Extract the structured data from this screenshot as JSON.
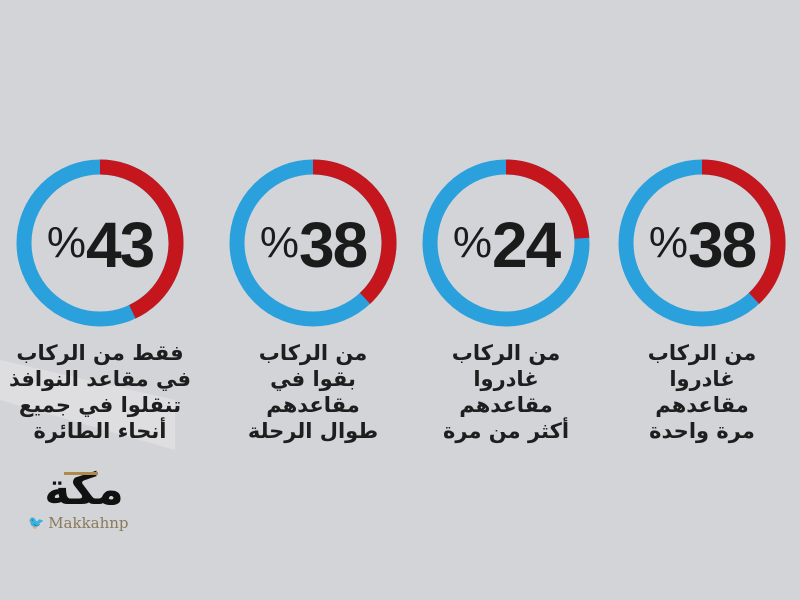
{
  "chart_data": {
    "type": "pie",
    "variant": "donut",
    "colors": {
      "highlight": "#c4161c",
      "remainder": "#2aa0dc"
    },
    "charts": [
      {
        "value": 43,
        "label": "%43",
        "caption": [
          "فقط من الركاب",
          "في مقاعد النوافذ",
          "تنقلوا في  جميع",
          "أنحاء الطائرة"
        ]
      },
      {
        "value": 38,
        "label": "%38",
        "caption": [
          "من الركاب",
          "بقوا في",
          "مقاعدهم",
          "طوال الرحلة"
        ]
      },
      {
        "value": 24,
        "label": "%24",
        "caption": [
          "من الركاب",
          "غادروا",
          "مقاعدهم",
          "أكثر من مرة"
        ]
      },
      {
        "value": 38,
        "label": "%38",
        "caption": [
          "من الركاب",
          "غادروا",
          "مقاعدهم",
          "مرة واحدة"
        ]
      }
    ]
  },
  "display": [
    {
      "num": "43",
      "sym": "%"
    },
    {
      "num": "38",
      "sym": "%"
    },
    {
      "num": "24",
      "sym": "%"
    },
    {
      "num": "38",
      "sym": "%"
    }
  ],
  "branding": {
    "logo_text": "مكة",
    "twitter_icon": "twitter-bird-icon",
    "handle": "Makkahnp"
  }
}
